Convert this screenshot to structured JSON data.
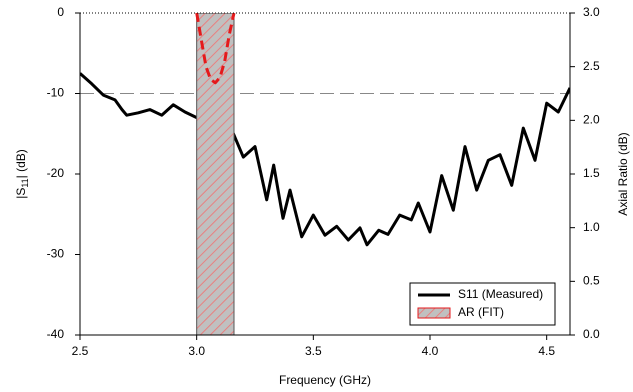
{
  "chart_data": {
    "type": "line",
    "xlabel": "Frequency (GHz)",
    "ylabel": [
      "|S",
      "11",
      "| (dB)"
    ],
    "y2label": "Axial Ratio (dB)",
    "xlim": [
      2.5,
      4.6
    ],
    "ylim": [
      -40,
      0
    ],
    "y2lim": [
      0,
      3.0
    ],
    "xticks": [
      2.5,
      {
        "value": 3.0,
        "label": "3.0"
      },
      3.5,
      {
        "value": 4.0,
        "label": "4.0"
      },
      4.5
    ],
    "yticks": [
      0,
      -10,
      -20,
      -30,
      -40
    ],
    "y2ticks": [
      {
        "value": 0,
        "label": "0.0"
      },
      0.5,
      {
        "value": 1.0,
        "label": "1.0"
      },
      1.5,
      {
        "value": 2.0,
        "label": "2.0"
      },
      2.5,
      {
        "value": 3.0,
        "label": "3.0"
      }
    ],
    "reference_line": -10,
    "legend": "bottom-right",
    "series": [
      {
        "name": "S11 (Measured)",
        "color": "#000000",
        "x": [
          2.5,
          2.55,
          2.6,
          2.65,
          2.68,
          2.7,
          2.75,
          2.8,
          2.85,
          2.9,
          2.95,
          3.0,
          3.05,
          3.1,
          3.15,
          3.2,
          3.25,
          3.3,
          3.33,
          3.37,
          3.4,
          3.45,
          3.5,
          3.55,
          3.6,
          3.65,
          3.7,
          3.73,
          3.78,
          3.82,
          3.87,
          3.92,
          3.95,
          4.0,
          4.05,
          4.1,
          4.15,
          4.2,
          4.25,
          4.3,
          4.35,
          4.4,
          4.45,
          4.5,
          4.55,
          4.6
        ],
        "values": [
          -7.5,
          -8.8,
          -10.2,
          -10.8,
          -12,
          -12.7,
          -12.4,
          -12,
          -12.7,
          -11.4,
          -12.3,
          -13,
          -13.5,
          -13.8,
          -14.5,
          -17.9,
          -16.6,
          -23.2,
          -18.9,
          -25.5,
          -22,
          -27.8,
          -25.1,
          -27.6,
          -26.5,
          -28.2,
          -26.7,
          -28.8,
          -27,
          -27.5,
          -25.1,
          -25.7,
          -23.6,
          -27.2,
          -20.2,
          -24.5,
          -16.6,
          -22,
          -18.3,
          -17.6,
          -21.4,
          -14.3,
          -18.3,
          -11.2,
          -12.3,
          -9.3
        ]
      },
      {
        "name": "AR (FIT)",
        "color": "#e41a1c",
        "axis": "y2",
        "x": [
          3.0,
          3.02,
          3.04,
          3.06,
          3.08,
          3.1,
          3.12,
          3.14,
          3.16
        ],
        "values": [
          3.0,
          2.75,
          2.5,
          2.38,
          2.35,
          2.4,
          2.55,
          2.8,
          3.0
        ],
        "region": [
          3.0,
          3.16
        ]
      }
    ]
  }
}
